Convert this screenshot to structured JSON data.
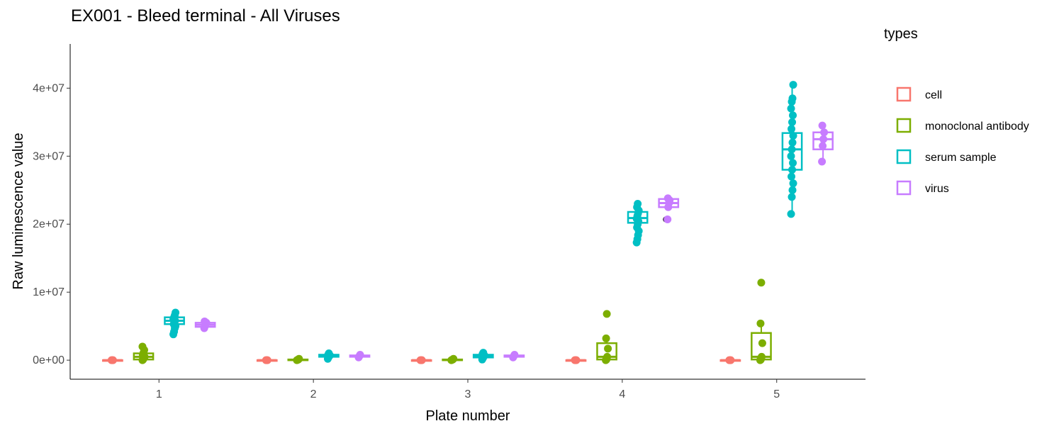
{
  "chart_data": {
    "type": "boxplot",
    "title": "EX001 - Bleed terminal - All Viruses",
    "xlabel": "Plate number",
    "ylabel": "Raw luminescence value",
    "categories": [
      "1",
      "2",
      "3",
      "4",
      "5"
    ],
    "ylim": [
      -2800000,
      46500000
    ],
    "yticks": [
      0,
      10000000,
      20000000,
      30000000,
      40000000
    ],
    "ytick_labels": [
      "0e+00",
      "1e+07",
      "2e+07",
      "3e+07",
      "4e+07"
    ],
    "grid": false,
    "legend": {
      "title": "types",
      "position": "right",
      "items": [
        {
          "label": "cell",
          "color": "#F8766D"
        },
        {
          "label": "monoclonal antibody",
          "color": "#7CAE00"
        },
        {
          "label": "serum sample",
          "color": "#00BFC4"
        },
        {
          "label": "virus",
          "color": "#C77CFF"
        }
      ]
    },
    "series": [
      {
        "name": "cell",
        "color": "#F8766D",
        "boxes": [
          {
            "plate": "1",
            "min": 0,
            "q1": 0,
            "median": 0,
            "q3": 0,
            "max": 0,
            "points": [
              0,
              0,
              0
            ]
          },
          {
            "plate": "2",
            "min": 0,
            "q1": 0,
            "median": 0,
            "q3": 0,
            "max": 0,
            "points": [
              0,
              0,
              0
            ]
          },
          {
            "plate": "3",
            "min": 0,
            "q1": 0,
            "median": 0,
            "q3": 0,
            "max": 0,
            "points": [
              0,
              0,
              0
            ]
          },
          {
            "plate": "4",
            "min": 0,
            "q1": 0,
            "median": 0,
            "q3": 0,
            "max": 0,
            "points": [
              0,
              0,
              0
            ]
          },
          {
            "plate": "5",
            "min": 0,
            "q1": 0,
            "median": 0,
            "q3": 0,
            "max": 0,
            "points": [
              0,
              0,
              0
            ]
          }
        ]
      },
      {
        "name": "monoclonal antibody",
        "color": "#7CAE00",
        "boxes": [
          {
            "plate": "1",
            "min": 0,
            "q1": 100000,
            "median": 500000,
            "q3": 1000000,
            "max": 2000000,
            "points": [
              0,
              100000,
              300000,
              500000,
              800000,
              1100000,
              1500000,
              2000000
            ]
          },
          {
            "plate": "2",
            "min": 0,
            "q1": 0,
            "median": 50000,
            "q3": 100000,
            "max": 200000,
            "points": [
              0,
              50000,
              100000,
              200000
            ]
          },
          {
            "plate": "3",
            "min": 0,
            "q1": 0,
            "median": 50000,
            "q3": 100000,
            "max": 200000,
            "points": [
              0,
              50000,
              100000,
              200000
            ]
          },
          {
            "plate": "4",
            "min": 0,
            "q1": 100000,
            "median": 500000,
            "q3": 2500000,
            "max": 3200000,
            "points": [
              0,
              100000,
              500000,
              1700000,
              3200000,
              6800000
            ]
          },
          {
            "plate": "5",
            "min": 0,
            "q1": 100000,
            "median": 500000,
            "q3": 4000000,
            "max": 5400000,
            "points": [
              0,
              100000,
              500000,
              2500000,
              5400000,
              11400000
            ]
          }
        ]
      },
      {
        "name": "serum sample",
        "color": "#00BFC4",
        "boxes": [
          {
            "plate": "1",
            "min": 3800000,
            "q1": 5300000,
            "median": 5800000,
            "q3": 6300000,
            "max": 7000000,
            "points": [
              3800000,
              4200000,
              4700000,
              5000000,
              5300000,
              5600000,
              5800000,
              6000000,
              6300000,
              6600000,
              7000000
            ]
          },
          {
            "plate": "2",
            "min": 200000,
            "q1": 500000,
            "median": 700000,
            "q3": 800000,
            "max": 1000000,
            "points": [
              200000,
              400000,
              600000,
              700000,
              800000,
              1000000
            ]
          },
          {
            "plate": "3",
            "min": 100000,
            "q1": 400000,
            "median": 600000,
            "q3": 800000,
            "max": 1100000,
            "points": [
              100000,
              300000,
              500000,
              700000,
              900000,
              1100000
            ]
          },
          {
            "plate": "4",
            "min": 17300000,
            "q1": 20200000,
            "median": 20900000,
            "q3": 21800000,
            "max": 23000000,
            "points": [
              17300000,
              17800000,
              18400000,
              19000000,
              19500000,
              20000000,
              20400000,
              20800000,
              21200000,
              21600000,
              22000000,
              22500000,
              23000000
            ]
          },
          {
            "plate": "5",
            "min": 21500000,
            "q1": 28000000,
            "median": 31000000,
            "q3": 33400000,
            "max": 40500000,
            "points": [
              21500000,
              24000000,
              25000000,
              26000000,
              27000000,
              28000000,
              29000000,
              30000000,
              31000000,
              32000000,
              33000000,
              34000000,
              35000000,
              36000000,
              37000000,
              38000000,
              38500000,
              40500000
            ]
          }
        ]
      },
      {
        "name": "virus",
        "color": "#C77CFF",
        "boxes": [
          {
            "plate": "1",
            "min": 4700000,
            "q1": 4900000,
            "median": 5200000,
            "q3": 5500000,
            "max": 5700000,
            "points": [
              4700000,
              5000000,
              5300000,
              5500000,
              5700000
            ]
          },
          {
            "plate": "2",
            "min": 400000,
            "q1": 500000,
            "median": 600000,
            "q3": 700000,
            "max": 800000,
            "points": [
              400000,
              600000,
              800000
            ]
          },
          {
            "plate": "3",
            "min": 400000,
            "q1": 500000,
            "median": 600000,
            "q3": 700000,
            "max": 800000,
            "points": [
              400000,
              600000,
              800000
            ]
          },
          {
            "plate": "4",
            "min": 22500000,
            "q1": 22500000,
            "median": 23100000,
            "q3": 23700000,
            "max": 23800000,
            "outliers": [
              20700000
            ],
            "points": [
              20700000,
              22500000,
              23100000,
              23500000,
              23800000
            ]
          },
          {
            "plate": "5",
            "min": 29200000,
            "q1": 31000000,
            "median": 32500000,
            "q3": 33500000,
            "max": 34500000,
            "points": [
              29200000,
              31500000,
              32500000,
              33500000,
              34500000
            ]
          }
        ]
      }
    ]
  }
}
